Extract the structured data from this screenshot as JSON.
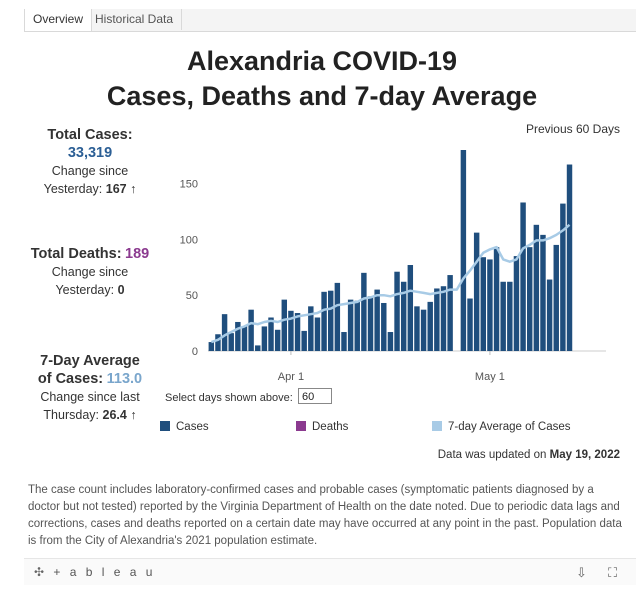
{
  "tabs": [
    {
      "label": "Overview",
      "active": true
    },
    {
      "label": "Historical Data",
      "active": false
    }
  ],
  "title_line1": "Alexandria COVID-19",
  "title_line2": "Cases, Deaths and 7-day Average",
  "period_label": "Previous 60 Days",
  "total_cases": {
    "label": "Total Cases:",
    "value": "33,319",
    "change_label_1": "Change since",
    "change_label_2": "Yesterday:",
    "change_value": "167",
    "arrow": "↑"
  },
  "total_deaths": {
    "label": "Total Deaths:",
    "value": "189",
    "change_label_1": "Change since",
    "change_label_2": "Yesterday:",
    "change_value": "0"
  },
  "seven_day": {
    "label_1": "7-Day Average",
    "label_2": "of Cases:",
    "value": "113.0",
    "change_label_1": "Change since last",
    "change_label_2": "Thursday:",
    "change_value": "26.4",
    "arrow": "↑"
  },
  "select_days": {
    "label": "Select days shown above:",
    "value": "60"
  },
  "legend": [
    {
      "label": "Cases",
      "color": "#1f4e7d"
    },
    {
      "label": "Deaths",
      "color": "#8b3a8f"
    },
    {
      "label": "7-day Average of Cases",
      "color": "#a8cbe6"
    }
  ],
  "updated": {
    "prefix": "Data was updated on",
    "date": "May 19, 2022"
  },
  "note": "The case count includes laboratory-confirmed cases and probable cases (symptomatic patients diagnosed by a doctor but not tested) reported by the Virginia Department of Health on the date noted. Due to periodic data lags and  corrections, cases and deaths reported on a certain date may have occurred at any point in the past. Population data is from the City of Alexandria's 2021 population estimate.",
  "footer": {
    "brand": "+ a b l e a u",
    "brand_icon": "tableau-logo-icon",
    "icons": [
      "share-icon",
      "fullscreen-icon"
    ]
  },
  "chart_data": {
    "type": "bar",
    "x_start": "2022-03-20",
    "x_end": "2022-05-18",
    "xticks": [
      "Apr 1",
      "May 1"
    ],
    "xtick_dates": [
      "2022-04-01",
      "2022-05-01"
    ],
    "yticks": [
      0,
      50,
      100,
      150
    ],
    "ylim": [
      0,
      180
    ],
    "grid": false,
    "series": [
      {
        "name": "Cases",
        "color": "#1f4e7d",
        "values": [
          8,
          15,
          33,
          16,
          26,
          22,
          37,
          5,
          22,
          30,
          19,
          46,
          36,
          34,
          18,
          40,
          30,
          53,
          54,
          61,
          17,
          46,
          45,
          70,
          49,
          55,
          43,
          17,
          71,
          62,
          77,
          40,
          37,
          44,
          56,
          58,
          68,
          0,
          180,
          47,
          106,
          84,
          82,
          93,
          62,
          62,
          85,
          133,
          93,
          113,
          104,
          64,
          95,
          132,
          167
        ]
      },
      {
        "name": "7-day Average of Cases",
        "color": "#a8cbe6",
        "values": [
          8,
          10,
          14,
          17,
          20,
          22,
          25,
          24,
          26,
          27,
          26,
          28,
          29,
          31,
          32,
          33,
          34,
          37,
          38,
          41,
          42,
          43,
          44,
          47,
          48,
          50,
          50,
          49,
          51,
          52,
          54,
          53,
          52,
          51,
          52,
          53,
          55,
          55,
          65,
          72,
          80,
          88,
          91,
          93,
          82,
          80,
          82,
          92,
          95,
          99,
          99,
          101,
          104,
          108,
          113
        ]
      }
    ]
  }
}
